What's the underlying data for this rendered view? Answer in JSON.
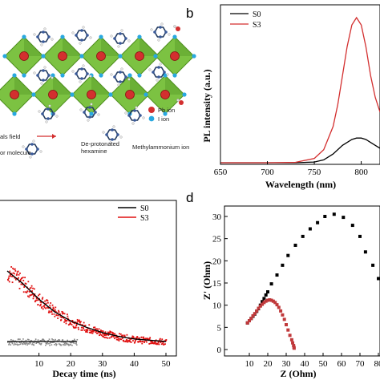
{
  "panel_a": {
    "legend": [
      {
        "text": "Pb ion",
        "color": "#d32f2f"
      },
      {
        "text": "I ion",
        "color": "#29a8e0"
      }
    ],
    "annotations": {
      "vdw": "als field",
      "molecule": "or molecule",
      "deprot_1": "De-protonated",
      "deprot_2": "hexamine",
      "methyl": "Methylammonium ion"
    },
    "colors": {
      "octahedron": "#7cc242",
      "octahedron_dark": "#4e8f1f",
      "pb": "#d32f2f",
      "iodide": "#29a8e0"
    }
  },
  "panel_b": {
    "letter": "b"
  },
  "panel_d": {
    "letter": "d"
  },
  "chart_data": [
    {
      "id": "pl",
      "type": "line",
      "xlabel": "Wavelength (nm)",
      "ylabel": "PL intensity (a.u.)",
      "xlim": [
        650,
        820
      ],
      "xticks": [
        650,
        700,
        750,
        800
      ],
      "legend_position": "top-left",
      "series": [
        {
          "name": "S0",
          "color": "#000000",
          "x": [
            650,
            700,
            730,
            750,
            760,
            770,
            780,
            790,
            795,
            800,
            805,
            810,
            815,
            820
          ],
          "y": [
            0,
            0,
            0,
            0.005,
            0.02,
            0.06,
            0.12,
            0.16,
            0.17,
            0.17,
            0.16,
            0.14,
            0.12,
            0.1
          ]
        },
        {
          "name": "S3",
          "color": "#d32f2f",
          "x": [
            650,
            700,
            730,
            750,
            760,
            770,
            775,
            780,
            785,
            790,
            795,
            800,
            805,
            810,
            815,
            820
          ],
          "y": [
            0,
            0,
            0.003,
            0.03,
            0.09,
            0.25,
            0.4,
            0.6,
            0.8,
            0.95,
            1.0,
            0.95,
            0.8,
            0.6,
            0.45,
            0.35
          ]
        }
      ]
    },
    {
      "id": "decay",
      "type": "scatter",
      "xlabel": "Decay time (ns)",
      "xlim": [
        0,
        50
      ],
      "xticks": [
        10,
        20,
        30,
        40,
        50
      ],
      "legend_position": "top-right",
      "series": [
        {
          "name": "S0",
          "color": "#000000",
          "fit_color": "#000000"
        },
        {
          "name": "S3",
          "color": "#e01010",
          "fit_color": "#000000"
        }
      ],
      "s3_fit": {
        "x": [
          0,
          5,
          10,
          15,
          20,
          25,
          30,
          35,
          40,
          45,
          50
        ],
        "y": [
          0.6,
          0.5,
          0.38,
          0.28,
          0.21,
          0.16,
          0.12,
          0.09,
          0.07,
          0.06,
          0.05
        ]
      },
      "s0_level": 0.05,
      "noise_color": "#888888"
    },
    {
      "id": "eis",
      "type": "scatter",
      "xlabel": "Z (Ohm)",
      "ylabel": "Z' (Ohm)",
      "xlim": [
        0,
        80
      ],
      "ylim": [
        0,
        35
      ],
      "xticks": [
        10,
        20,
        30,
        40,
        50,
        60,
        70,
        80
      ],
      "yticks": [
        0,
        5,
        10,
        15,
        20,
        25,
        30
      ],
      "series": [
        {
          "name": "S0",
          "color": "#000000",
          "x": [
            9,
            10,
            11,
            12,
            13,
            14,
            15,
            16,
            17,
            18,
            19,
            20,
            22,
            25,
            28,
            31,
            35,
            39,
            43,
            47,
            51,
            56,
            61,
            66,
            70,
            73,
            77,
            80
          ],
          "y": [
            6,
            6.5,
            7,
            7.5,
            8,
            8.6,
            9.2,
            10,
            10.8,
            11.5,
            12.3,
            13,
            14.8,
            16.8,
            19,
            21.2,
            23.5,
            25.5,
            27.2,
            28.6,
            30,
            30.5,
            29.8,
            28,
            25.5,
            22,
            19,
            16
          ]
        },
        {
          "name": "S3",
          "color": "#c0393b",
          "x": [
            9,
            10,
            11,
            12,
            13,
            14,
            15,
            16,
            17,
            18,
            19,
            20,
            21,
            22,
            23,
            24,
            25,
            26,
            27,
            28,
            29,
            30,
            31,
            32,
            33,
            33.5,
            34,
            34.2,
            34.3
          ],
          "y": [
            6,
            6.5,
            7,
            7.6,
            8.1,
            8.7,
            9.3,
            9.8,
            10.2,
            10.6,
            10.9,
            11.1,
            11.2,
            11.1,
            10.9,
            10.6,
            10.1,
            9.5,
            8.7,
            7.8,
            6.8,
            5.6,
            4.4,
            3.2,
            2.2,
            1.5,
            0.9,
            0.5,
            0.3
          ]
        }
      ]
    }
  ]
}
